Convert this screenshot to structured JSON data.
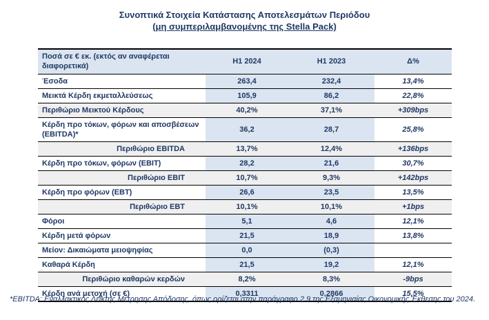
{
  "title": {
    "line1": "Συνοπτικά Στοιχεία Κατάστασης Αποτελεσμάτων Περιόδου",
    "line2": "(μη συμπεριλαμβανομένης της Stella Pack)"
  },
  "table": {
    "header": {
      "col1": "Ποσά σε € εκ. (εκτός αν αναφέρεται διαφορετικά)",
      "col2": "H1 2024",
      "col3": "H1 2023",
      "col4": "Δ%"
    },
    "rows": [
      {
        "label": "Έσοδα",
        "h1_2024": "263,4",
        "h1_2023": "232,4",
        "delta": "13,4%",
        "type": "data",
        "label_align": "left"
      },
      {
        "label": "Μεικτά Κέρδη εκμεταλλεύσεως",
        "h1_2024": "105,9",
        "h1_2023": "86,2",
        "delta": "22,8%",
        "type": "data",
        "label_align": "left"
      },
      {
        "label": "Περιθώριο Μεικτού Κέρδους",
        "h1_2024": "40,2%",
        "h1_2023": "37,1%",
        "delta": "+309bps",
        "type": "margin",
        "label_align": "left"
      },
      {
        "label": "Κέρδη προ τόκων, φόρων και αποσβέσεων (EBITDA)*",
        "h1_2024": "36,2",
        "h1_2023": "28,7",
        "delta": "25,8%",
        "type": "data",
        "label_align": "left"
      },
      {
        "label": "Περιθώριο EBITDA",
        "h1_2024": "13,7%",
        "h1_2023": "12,4%",
        "delta": "+136bps",
        "type": "margin",
        "label_align": "right"
      },
      {
        "label": "Κέρδη προ τόκων, φόρων (EBIT)",
        "h1_2024": "28,2",
        "h1_2023": "21,6",
        "delta": "30,7%",
        "type": "data",
        "label_align": "left"
      },
      {
        "label": "Περιθώριο EBIT",
        "h1_2024": "10,7%",
        "h1_2023": "9,3%",
        "delta": "+142bps",
        "type": "margin",
        "label_align": "right"
      },
      {
        "label": "Κέρδη προ φόρων (EBT)",
        "h1_2024": "26,6",
        "h1_2023": "23,5",
        "delta": "13,5%",
        "type": "data",
        "label_align": "left"
      },
      {
        "label": "Περιθώριο EBT",
        "h1_2024": "10,1%",
        "h1_2023": "10,1%",
        "delta": "+1bps",
        "type": "margin",
        "label_align": "right"
      },
      {
        "label": "Φόροι",
        "h1_2024": "5,1",
        "h1_2023": "4,6",
        "delta": "12,1%",
        "type": "data",
        "label_align": "left"
      },
      {
        "label": "Κέρδη μετά φόρων",
        "h1_2024": "21,5",
        "h1_2023": "18,9",
        "delta": "13,8%",
        "type": "data",
        "label_align": "left"
      },
      {
        "label": "Μείον: Δικαιώματα μειοψηφίας",
        "h1_2024": "0,0",
        "h1_2023": "(0,3)",
        "delta": "",
        "type": "data",
        "label_align": "left"
      },
      {
        "label": "Καθαρά Κέρδη",
        "h1_2024": "21,5",
        "h1_2023": "19,2",
        "delta": "12,1%",
        "type": "data",
        "label_align": "left"
      },
      {
        "label": "Περιθώριο καθαρών κερδών",
        "h1_2024": "8,2%",
        "h1_2023": "8,3%",
        "delta": "-9bps",
        "type": "margin",
        "label_align": "right"
      },
      {
        "label": "Κέρδη ανά μετοχή (σε €)",
        "h1_2024": "0,3311",
        "h1_2023": "0,2866",
        "delta": "15,5%",
        "type": "data",
        "label_align": "left"
      }
    ]
  },
  "footnote": "*EBITDA: Εναλλακτικός Δείκτης Μέτρησης Απόδοσης, όπως ορίζεται στην παράγραφο 2.9 της Εξαμηνιαίας Οικονομικής Έκθεσης του 2024.",
  "colors": {
    "text_navy": "#1f3864",
    "value_cell_bg": "#dbe5f1",
    "margin_row_bg": "#efefef",
    "border": "#000000"
  }
}
